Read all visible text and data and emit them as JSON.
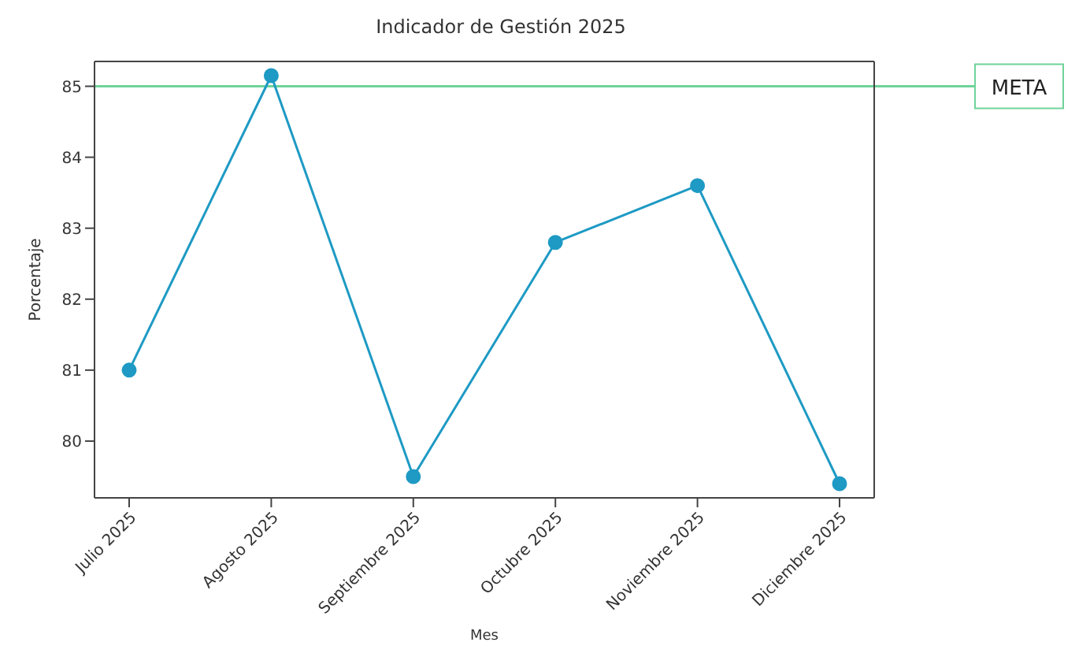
{
  "chart_data": {
    "type": "line",
    "title": "Indicador de Gestión 2025",
    "xlabel": "Mes",
    "ylabel": "Porcentaje",
    "categories": [
      "Julio 2025",
      "Agosto 2025",
      "Septiembre 2025",
      "Octubre 2025",
      "Noviembre 2025",
      "Diciembre 2025"
    ],
    "series": [
      {
        "color": "#1e9ac4",
        "values": [
          81.0,
          85.15,
          79.5,
          82.8,
          83.6,
          79.4
        ]
      }
    ],
    "ylim": [
      79.2,
      85.35
    ],
    "yticks": [
      80,
      81,
      82,
      83,
      84,
      85
    ],
    "grid": false,
    "legend": false,
    "marker": "circle",
    "line_style": "solid",
    "ref_lines": [
      {
        "axis": "y",
        "value": 85,
        "label": "META",
        "color": "#6fd39a"
      }
    ]
  }
}
